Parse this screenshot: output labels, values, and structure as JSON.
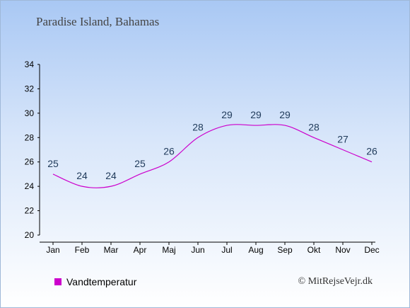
{
  "title": "Paradise Island, Bahamas",
  "legend": {
    "label": "Vandtemperatur",
    "color": "#cc00cc"
  },
  "credit": "© MitRejseVejr.dk",
  "chart_data": {
    "type": "line",
    "title": "Paradise Island, Bahamas",
    "xlabel": "",
    "ylabel": "",
    "categories": [
      "Jan",
      "Feb",
      "Mar",
      "Apr",
      "Maj",
      "Jun",
      "Jul",
      "Aug",
      "Sep",
      "Okt",
      "Nov",
      "Dec"
    ],
    "series": [
      {
        "name": "Vandtemperatur",
        "values": [
          25,
          24,
          24,
          25,
          26,
          28,
          29,
          29,
          29,
          28,
          27,
          26
        ],
        "color": "#cc00cc"
      }
    ],
    "ylim": [
      20,
      34
    ],
    "yticks": [
      20,
      22,
      24,
      26,
      28,
      30,
      32,
      34
    ],
    "grid": false,
    "legend_position": "bottom-left"
  }
}
